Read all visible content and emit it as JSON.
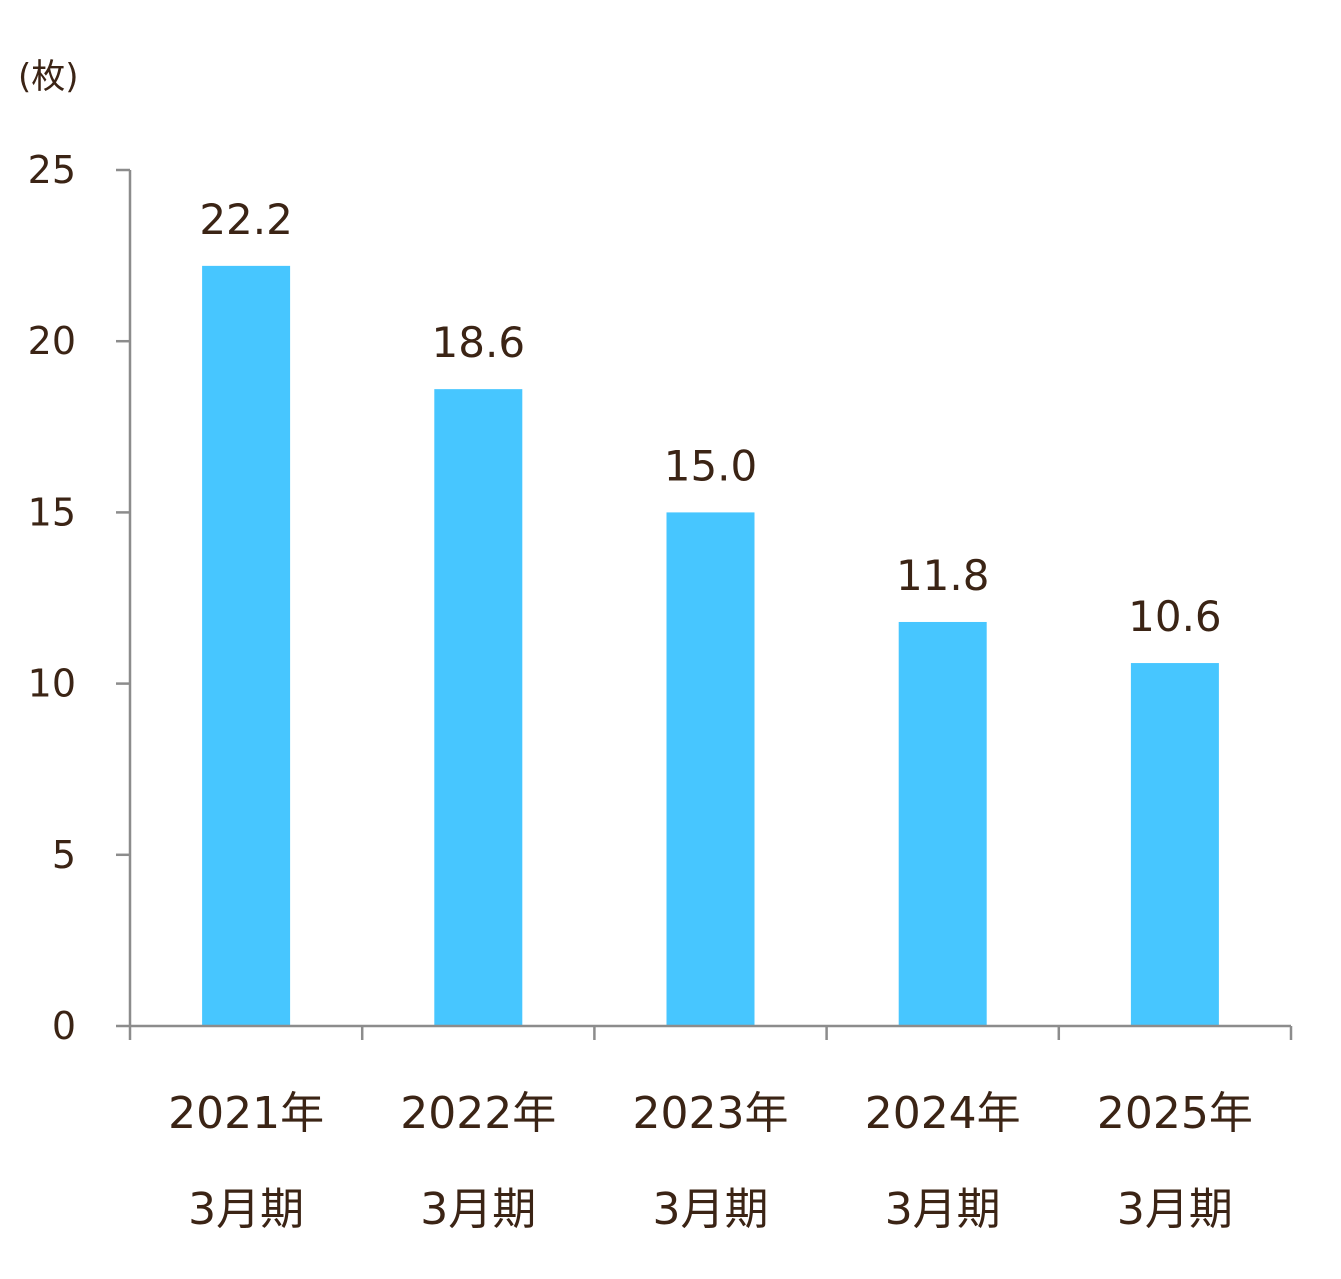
{
  "chart_data": {
    "type": "bar",
    "unit_label": "(枚)",
    "categories": [
      [
        "2021年",
        "3月期"
      ],
      [
        "2022年",
        "3月期"
      ],
      [
        "2023年",
        "3月期"
      ],
      [
        "2024年",
        "3月期"
      ],
      [
        "2025年",
        "3月期"
      ]
    ],
    "values": [
      22.2,
      18.6,
      15.0,
      11.8,
      10.6
    ],
    "data_labels": [
      "22.2",
      "18.6",
      "15.0",
      "11.8",
      "10.6"
    ],
    "ylim": [
      0,
      25
    ],
    "yticks": [
      0,
      5,
      10,
      15,
      20,
      25
    ],
    "grid": false,
    "colors": {
      "bar": "#47c6ff",
      "text": "#3b2415",
      "axis": "#8c8c8c"
    }
  }
}
